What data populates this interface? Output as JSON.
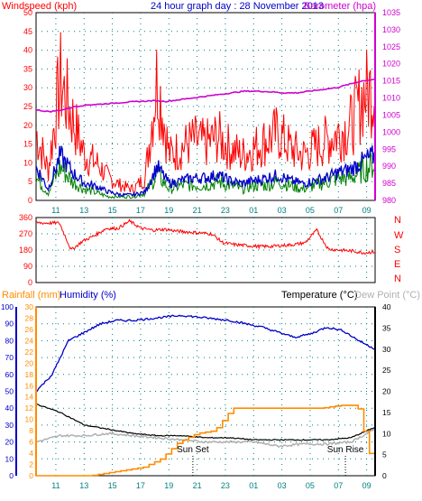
{
  "header": {
    "left_label": "Windspeed (kph)",
    "title": "24 hour graph day : 28 November 2013",
    "right_label": "Barometer (hpa)"
  },
  "colors": {
    "red": "#ff0000",
    "blue": "#0000c8",
    "green": "#008000",
    "magenta": "#d000d0",
    "orange": "#ff8c00",
    "grid": "#008080",
    "gray": "#b0b0b0",
    "black": "#000000"
  },
  "chart_data": [
    {
      "type": "line",
      "name": "wind-barometer",
      "x_ticks": [
        "11",
        "13",
        "15",
        "17",
        "19",
        "21",
        "23",
        "01",
        "03",
        "05",
        "07",
        "09"
      ],
      "ylim": [
        0,
        50
      ],
      "y_ticks": [
        "0",
        "5",
        "10",
        "15",
        "20",
        "25",
        "30",
        "35",
        "40",
        "45",
        "50"
      ],
      "y2lim": [
        980,
        1035
      ],
      "y2_ticks": [
        "980",
        "985",
        "990",
        "995",
        "1000",
        "1005",
        "1010",
        "1015",
        "1020",
        "1025",
        "1030",
        "1035"
      ],
      "barometer_hpa": [
        1006.5,
        1006,
        1006.5,
        1007.5,
        1008,
        1008.2,
        1008.5,
        1008.8,
        1009,
        1009.2,
        1009,
        1009.5,
        1010,
        1010.5,
        1011,
        1011.5,
        1012,
        1012,
        1011.8,
        1011.5,
        1011.5,
        1012,
        1012.5,
        1013,
        1014,
        1015,
        1015.5
      ],
      "gust_profile_kph": [
        18,
        8,
        32,
        22,
        12,
        10,
        6,
        4,
        3,
        6,
        33,
        12,
        14,
        16,
        15,
        17,
        14,
        12,
        14,
        16,
        18,
        14,
        12,
        14,
        16,
        18,
        20,
        28,
        30
      ],
      "avg_profile_kph": [
        12,
        4,
        16,
        10,
        6,
        5,
        3,
        2,
        2,
        3,
        12,
        6,
        7,
        8,
        8,
        9,
        7,
        6,
        7,
        8,
        9,
        7,
        6,
        7,
        8,
        10,
        11,
        14,
        16
      ],
      "low_profile_kph": [
        6,
        2,
        9,
        5,
        3,
        2,
        1,
        1,
        1,
        2,
        7,
        3,
        4,
        4,
        4,
        5,
        4,
        3,
        4,
        4,
        5,
        4,
        3,
        4,
        5,
        6,
        6,
        8,
        10
      ]
    },
    {
      "type": "line",
      "name": "wind-direction",
      "ylim": [
        0,
        360
      ],
      "y_ticks": [
        "0",
        "90",
        "180",
        "270",
        "360"
      ],
      "compass_labels": [
        "N",
        "W",
        "S",
        "E",
        "N"
      ],
      "direction_deg": [
        330,
        330,
        330,
        180,
        230,
        260,
        300,
        300,
        340,
        300,
        290,
        295,
        285,
        280,
        275,
        270,
        220,
        210,
        205,
        200,
        200,
        205,
        210,
        220,
        290,
        185,
        180,
        175,
        165,
        170
      ]
    },
    {
      "type": "line",
      "name": "rain-humidity-temperature",
      "labels": {
        "rainfall": "Rainfall (mm)",
        "humidity": "Humidity (%)",
        "temperature": "Temperature (°C)",
        "dewpoint": "Dew Point (°C)"
      },
      "annotations": {
        "sunset": "Sun Set",
        "sunrise": "Sun Rise"
      },
      "humidity_ylim": [
        0,
        100
      ],
      "humidity_ticks": [
        "0",
        "10",
        "20",
        "30",
        "40",
        "50",
        "60",
        "70",
        "80",
        "90",
        "100"
      ],
      "rain_ylim": [
        0,
        30
      ],
      "rain_ticks": [
        "0",
        "2",
        "4",
        "6",
        "8",
        "10",
        "12",
        "14",
        "16",
        "18",
        "20",
        "22",
        "24",
        "26",
        "28",
        "30"
      ],
      "temp_ylim": [
        0,
        40
      ],
      "temp_ticks": [
        "0",
        "5",
        "10",
        "15",
        "20",
        "25",
        "30",
        "35",
        "40"
      ],
      "humidity_pct": [
        50,
        60,
        80,
        85,
        90,
        92,
        92,
        93,
        94,
        95,
        94,
        93,
        92,
        90,
        88,
        85,
        82,
        84,
        88,
        86,
        80,
        75
      ],
      "temperature_c": [
        17,
        15,
        12,
        11,
        10,
        9.5,
        9.5,
        9,
        9,
        8.5,
        8.5,
        8.5,
        8.5,
        9,
        11.5
      ],
      "dewpoint_c": [
        8,
        9.5,
        9.5,
        10,
        9.5,
        9,
        8.5,
        8,
        8,
        8,
        7,
        7.5,
        7.5,
        8,
        11
      ],
      "rain_mm": [
        0,
        0,
        0,
        0,
        0.5,
        1,
        1.5,
        3,
        6,
        7.5,
        8,
        12,
        12,
        12,
        12,
        12,
        12,
        12.5,
        12.5,
        0
      ],
      "sunset_hour": 20.7,
      "sunrise_hour": 7.5
    }
  ]
}
